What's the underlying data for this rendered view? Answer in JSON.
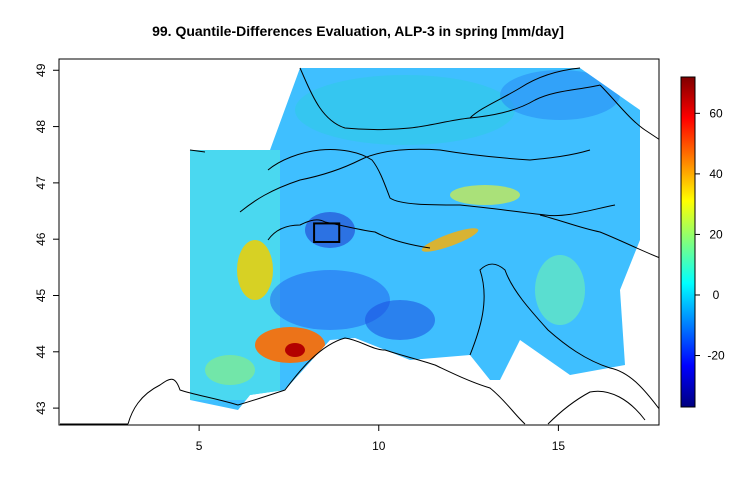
{
  "figure": {
    "title": "99. Quantile-Differences Evaluation, ALP-3 in spring [mm/day]"
  },
  "map": {
    "x_axis": {
      "ticks": [
        {
          "value": 5,
          "label": "5"
        },
        {
          "value": 10,
          "label": "10"
        },
        {
          "value": 15,
          "label": "15"
        }
      ],
      "range": [
        1.1,
        17.8
      ]
    },
    "y_axis": {
      "ticks": [
        {
          "value": 43,
          "label": "43"
        },
        {
          "value": 44,
          "label": "44"
        },
        {
          "value": 45,
          "label": "45"
        },
        {
          "value": 46,
          "label": "46"
        },
        {
          "value": 47,
          "label": "47"
        },
        {
          "value": 48,
          "label": "48"
        },
        {
          "value": 49,
          "label": "49"
        }
      ],
      "range": [
        42.7,
        49.2
      ]
    },
    "highlight_box": {
      "lon": [
        8.2,
        8.9
      ],
      "lat": [
        45.95,
        46.28
      ]
    }
  },
  "colorbar": {
    "range": [
      -37,
      72
    ],
    "ticks": [
      {
        "value": 60,
        "label": "60"
      },
      {
        "value": 40,
        "label": "40"
      },
      {
        "value": 20,
        "label": "20"
      },
      {
        "value": 0,
        "label": "0"
      },
      {
        "value": -20,
        "label": "-20"
      }
    ],
    "colors": [
      "#00007f",
      "#0000ff",
      "#007fff",
      "#00ffff",
      "#7fff7f",
      "#ffff00",
      "#ff7f00",
      "#ff0000",
      "#7f0000"
    ]
  }
}
